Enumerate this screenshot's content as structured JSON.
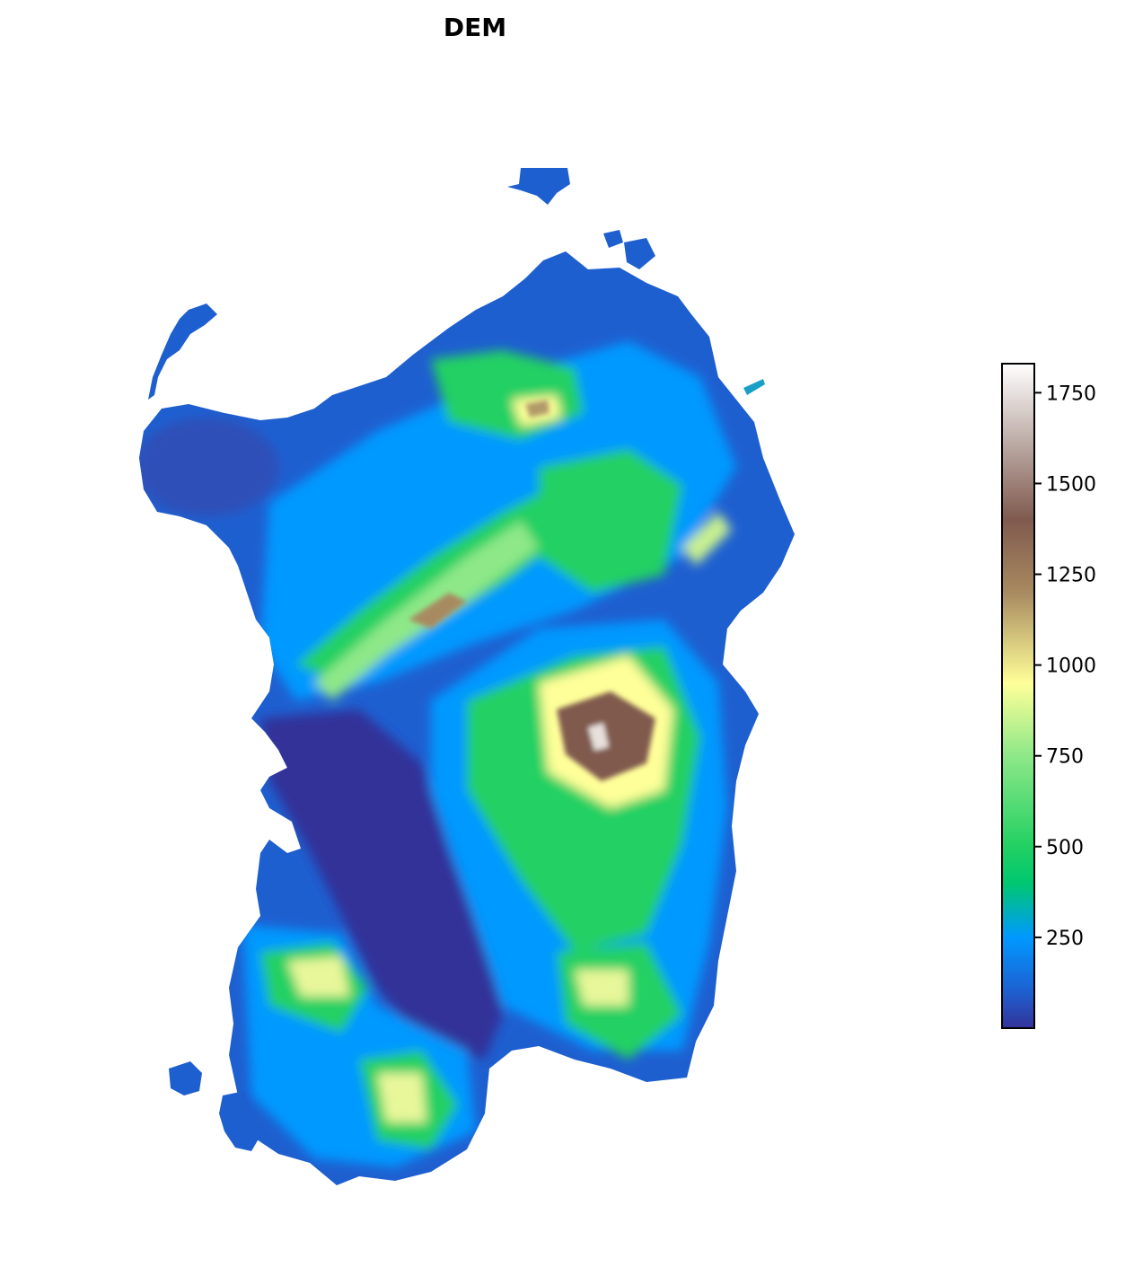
{
  "title": "DEM",
  "colorbar": {
    "min": 0,
    "max": 1830,
    "ticks": [
      250,
      500,
      750,
      1000,
      1250,
      1500,
      1750
    ],
    "stops": [
      {
        "value": 0,
        "color": "#333399"
      },
      {
        "value": 100,
        "color": "#1e5fd0"
      },
      {
        "value": 250,
        "color": "#0099ff"
      },
      {
        "value": 400,
        "color": "#00c870"
      },
      {
        "value": 500,
        "color": "#22d063"
      },
      {
        "value": 750,
        "color": "#8ee888"
      },
      {
        "value": 950,
        "color": "#ffff99"
      },
      {
        "value": 1200,
        "color": "#a88a60"
      },
      {
        "value": 1400,
        "color": "#805a4e"
      },
      {
        "value": 1600,
        "color": "#b8a6a0"
      },
      {
        "value": 1830,
        "color": "#ffffff"
      }
    ]
  },
  "colors": {
    "sea_level": "#333399",
    "lowland": "#1e5fd0",
    "hills": "#0099ff",
    "green": "#22d063",
    "light_green": "#8ee888",
    "yellow": "#ffff99",
    "tan": "#a88a60",
    "brown": "#805a4e",
    "peak": "#ffffff"
  }
}
